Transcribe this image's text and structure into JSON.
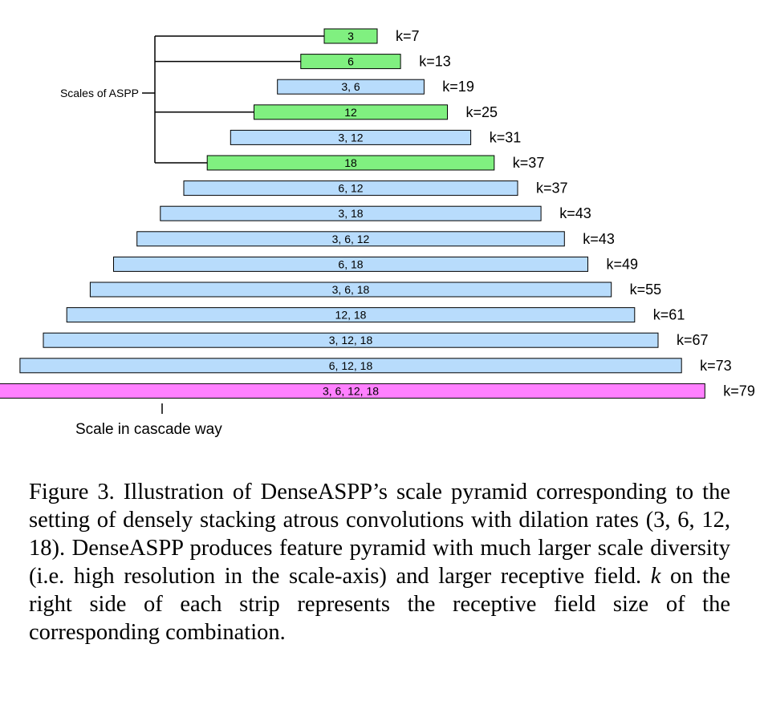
{
  "diagram": {
    "side_label": "Scales of ASPP",
    "bottom_label": "Scale in cascade way",
    "colors": {
      "aspp": "#80f080",
      "dense": "#b8dcfc",
      "full": "#ff80ff",
      "stroke": "#000000"
    },
    "strips": [
      {
        "label": "3",
        "k": "k=7",
        "type": "aspp"
      },
      {
        "label": "6",
        "k": "k=13",
        "type": "aspp"
      },
      {
        "label": "3, 6",
        "k": "k=19",
        "type": "dense"
      },
      {
        "label": "12",
        "k": "k=25",
        "type": "aspp"
      },
      {
        "label": "3, 12",
        "k": "k=31",
        "type": "dense"
      },
      {
        "label": "18",
        "k": "k=37",
        "type": "aspp"
      },
      {
        "label": "6, 12",
        "k": "k=37",
        "type": "dense"
      },
      {
        "label": "3, 18",
        "k": "k=43",
        "type": "dense"
      },
      {
        "label": "3, 6, 12",
        "k": "k=43",
        "type": "dense"
      },
      {
        "label": "6, 18",
        "k": "k=49",
        "type": "dense"
      },
      {
        "label": "3, 6, 18",
        "k": "k=55",
        "type": "dense"
      },
      {
        "label": "12, 18",
        "k": "k=61",
        "type": "dense"
      },
      {
        "label": "3, 12, 18",
        "k": "k=67",
        "type": "dense"
      },
      {
        "label": "6, 12, 18",
        "k": "k=73",
        "type": "dense"
      },
      {
        "label": "3, 6, 12, 18",
        "k": "k=79",
        "type": "full"
      }
    ]
  },
  "caption": {
    "part1": "Figure 3. Illustration of DenseASPP’s scale pyramid corresponding to the setting of densely stacking atrous convolutions with dilation rates (3, 6, 12, 18). DenseASPP produces feature pyramid with much larger scale diversity (i.e. high resolution in the scale-axis) and larger receptive field. ",
    "k_symbol": "k",
    "part2": " on the right side of each strip represents the receptive field size of the corresponding combination."
  }
}
